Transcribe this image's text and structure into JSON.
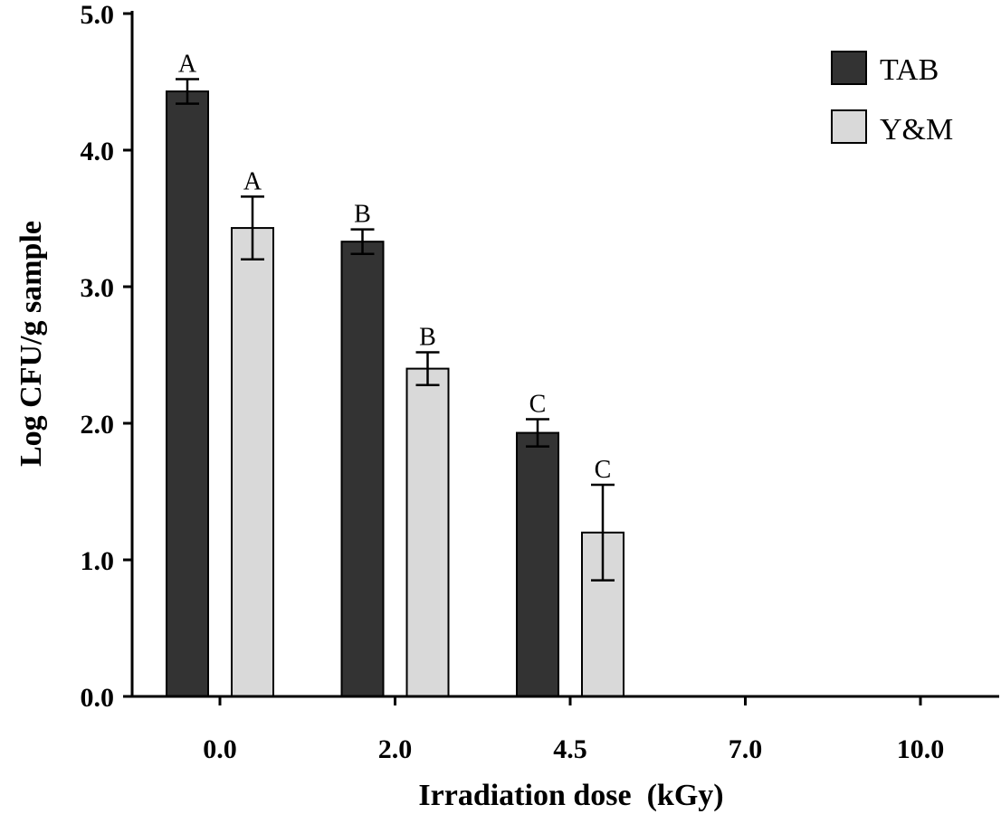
{
  "chart_data": {
    "type": "bar",
    "title": "",
    "xlabel": "Irradiation dose  (kGy)",
    "ylabel": "Log CFU/g sample",
    "ylim": [
      0,
      5
    ],
    "yticks": [
      "0.0",
      "1.0",
      "2.0",
      "3.0",
      "4.0",
      "5.0"
    ],
    "categories": [
      "0.0",
      "2.0",
      "4.5",
      "7.0",
      "10.0"
    ],
    "legend_position": "top-right",
    "series": [
      {
        "name": "TAB",
        "color": "#333333",
        "values": [
          4.43,
          3.33,
          1.93,
          0,
          0
        ],
        "errors": [
          0.09,
          0.09,
          0.1,
          0,
          0
        ],
        "letters": [
          "A",
          "B",
          "C",
          "",
          ""
        ]
      },
      {
        "name": "Y&M",
        "color": "#d9d9d9",
        "values": [
          3.43,
          2.4,
          1.2,
          0,
          0
        ],
        "errors": [
          0.23,
          0.12,
          0.35,
          0,
          0
        ],
        "letters": [
          "A",
          "B",
          "C",
          "",
          ""
        ]
      }
    ]
  }
}
